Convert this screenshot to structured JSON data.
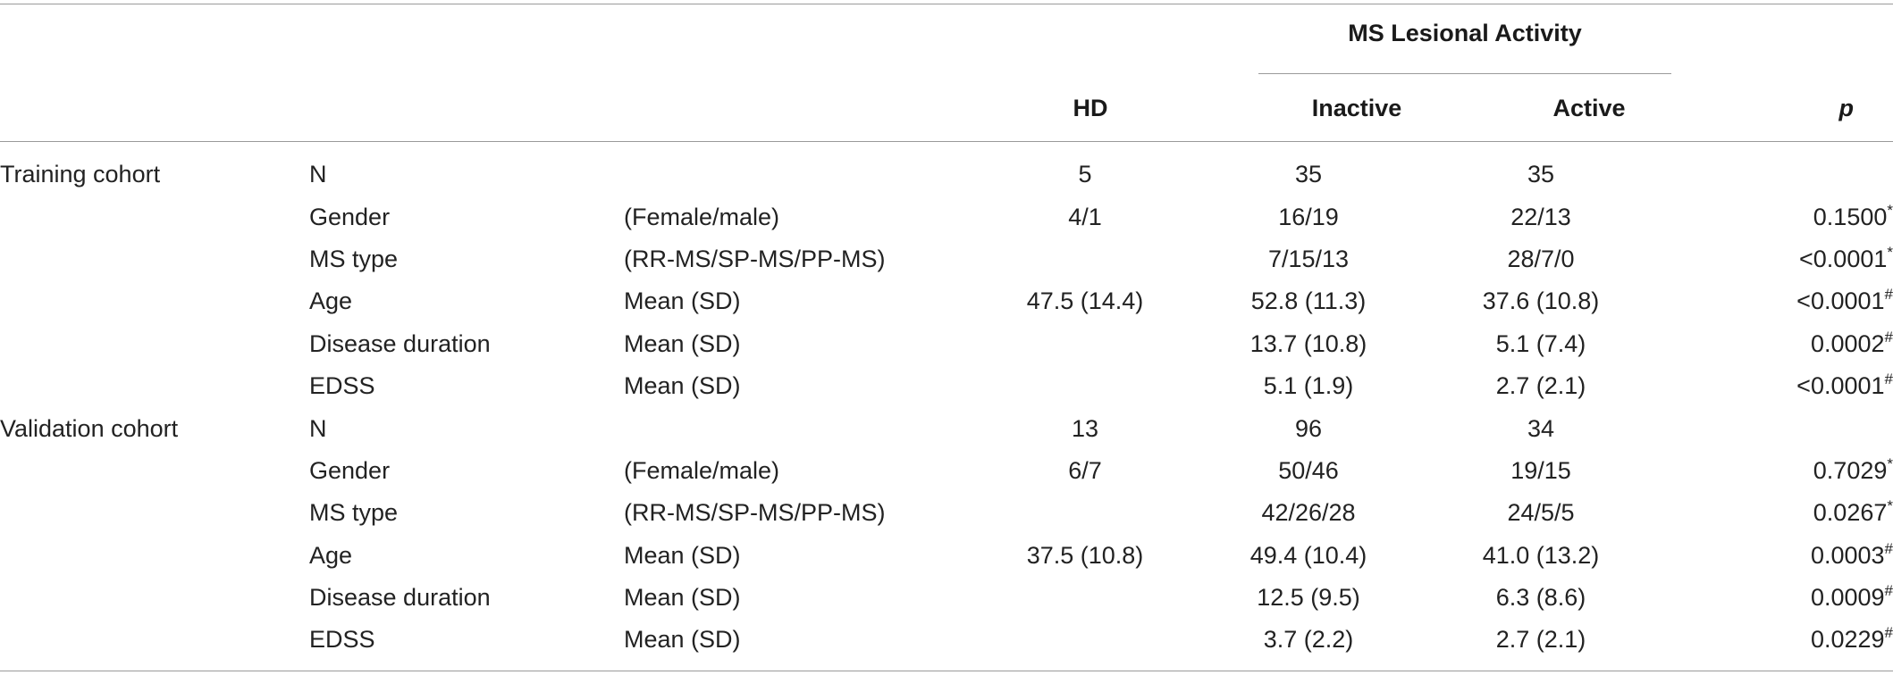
{
  "header": {
    "group_label": "MS Lesional Activity",
    "columns": {
      "hd": "HD",
      "inactive": "Inactive",
      "active": "Active",
      "p": "p"
    }
  },
  "rows": [
    {
      "cohort": "Training cohort",
      "variable": "N",
      "unit": "",
      "hd": "5",
      "inactive": "35",
      "active": "35",
      "p": "",
      "mark": ""
    },
    {
      "cohort": "",
      "variable": "Gender",
      "unit": "(Female/male)",
      "hd": "4/1",
      "inactive": "16/19",
      "active": "22/13",
      "p": "0.1500",
      "mark": "*"
    },
    {
      "cohort": "",
      "variable": "MS type",
      "unit": "(RR-MS/SP-MS/PP-MS)",
      "hd": "",
      "inactive": "7/15/13",
      "active": "28/7/0",
      "p": "<0.0001",
      "mark": "*"
    },
    {
      "cohort": "",
      "variable": "Age",
      "unit": "Mean (SD)",
      "hd": "47.5 (14.4)",
      "inactive": "52.8 (11.3)",
      "active": "37.6 (10.8)",
      "p": "<0.0001",
      "mark": "#"
    },
    {
      "cohort": "",
      "variable": "Disease duration",
      "unit": "Mean (SD)",
      "hd": "",
      "inactive": "13.7 (10.8)",
      "active": "5.1 (7.4)",
      "p": "0.0002",
      "mark": "#"
    },
    {
      "cohort": "",
      "variable": "EDSS",
      "unit": "Mean (SD)",
      "hd": "",
      "inactive": "5.1 (1.9)",
      "active": "2.7 (2.1)",
      "p": "<0.0001",
      "mark": "#"
    },
    {
      "cohort": "Validation cohort",
      "variable": "N",
      "unit": "",
      "hd": "13",
      "inactive": "96",
      "active": "34",
      "p": "",
      "mark": ""
    },
    {
      "cohort": "",
      "variable": "Gender",
      "unit": "(Female/male)",
      "hd": "6/7",
      "inactive": "50/46",
      "active": "19/15",
      "p": "0.7029",
      "mark": "*"
    },
    {
      "cohort": "",
      "variable": "MS type",
      "unit": "(RR-MS/SP-MS/PP-MS)",
      "hd": "",
      "inactive": "42/26/28",
      "active": "24/5/5",
      "p": "0.0267",
      "mark": "*"
    },
    {
      "cohort": "",
      "variable": "Age",
      "unit": "Mean (SD)",
      "hd": "37.5 (10.8)",
      "inactive": "49.4 (10.4)",
      "active": "41.0 (13.2)",
      "p": "0.0003",
      "mark": "#"
    },
    {
      "cohort": "",
      "variable": "Disease duration",
      "unit": "Mean (SD)",
      "hd": "",
      "inactive": "12.5 (9.5)",
      "active": "6.3 (8.6)",
      "p": "0.0009",
      "mark": "#"
    },
    {
      "cohort": "",
      "variable": "EDSS",
      "unit": "Mean (SD)",
      "hd": "",
      "inactive": "3.7 (2.2)",
      "active": "2.7 (2.1)",
      "p": "0.0229",
      "mark": "#"
    }
  ]
}
